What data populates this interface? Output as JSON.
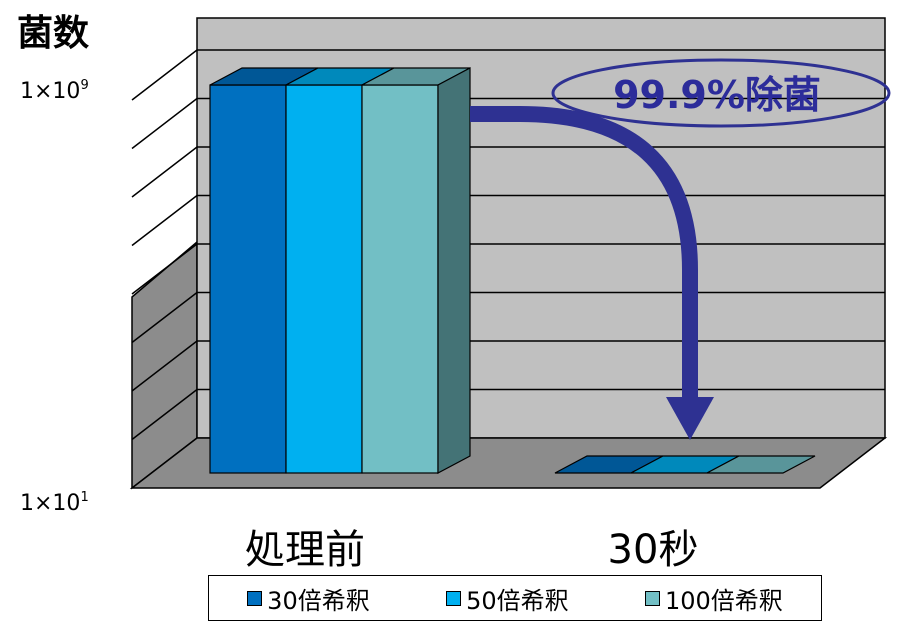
{
  "chart_data": {
    "type": "bar",
    "y_title": "菌数",
    "y_scale": "log",
    "ylim": [
      10,
      1000000000
    ],
    "ytick_top": {
      "base": "1×10",
      "exp": "9"
    },
    "ytick_bottom": {
      "base": "1×10",
      "exp": "1"
    },
    "categories": [
      "処理前",
      "30秒"
    ],
    "series": [
      {
        "name": "30倍希釈",
        "values": [
          1000000000,
          10
        ],
        "color": "#0070c0"
      },
      {
        "name": "50倍希釈",
        "values": [
          1000000000,
          10
        ],
        "color": "#00b0f0"
      },
      {
        "name": "100倍希釈",
        "values": [
          1000000000,
          10
        ],
        "color": "#72bfc5"
      }
    ],
    "annotation": "99.9%除菌",
    "legend_position": "bottom",
    "grid": true,
    "colors": {
      "wall": "#c0c0c0",
      "arrow": "#2e3192",
      "frame": "#000000"
    }
  }
}
